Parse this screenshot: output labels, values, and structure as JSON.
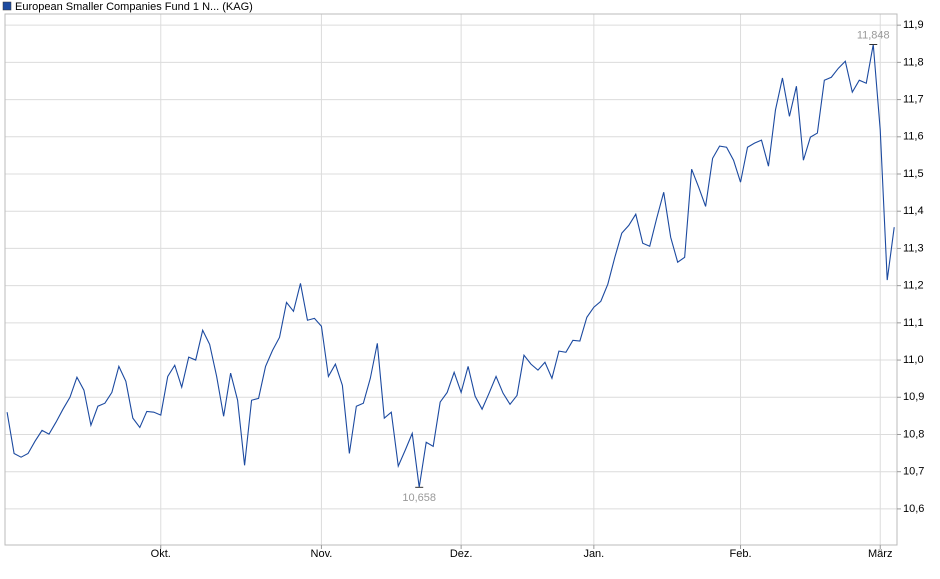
{
  "chart_data": {
    "type": "line",
    "series": [
      {
        "name": "European Smaller Companies Fund 1 N... (KAG)",
        "color": "#1c4aa0",
        "values": [
          10.86,
          10.749,
          10.739,
          10.749,
          10.782,
          10.811,
          10.801,
          10.833,
          10.868,
          10.9,
          10.954,
          10.919,
          10.825,
          10.876,
          10.884,
          10.913,
          10.983,
          10.943,
          10.844,
          10.819,
          10.862,
          10.86,
          10.852,
          10.956,
          10.986,
          10.927,
          11.008,
          11.0,
          11.08,
          11.042,
          10.956,
          10.849,
          10.965,
          10.892,
          10.717,
          10.892,
          10.897,
          10.983,
          11.026,
          11.061,
          11.155,
          11.131,
          11.206,
          11.107,
          11.112,
          11.091,
          10.956,
          10.989,
          10.932,
          10.749,
          10.876,
          10.884,
          10.951,
          11.045,
          10.844,
          10.86,
          10.715,
          10.758,
          10.803,
          10.658,
          10.779,
          10.768,
          10.887,
          10.913,
          10.967,
          10.913,
          10.983,
          10.903,
          10.868,
          10.911,
          10.956,
          10.911,
          10.881,
          10.905,
          11.013,
          10.989,
          10.973,
          10.994,
          10.951,
          11.024,
          11.021,
          11.053,
          11.051,
          11.115,
          11.142,
          11.158,
          11.204,
          11.276,
          11.341,
          11.362,
          11.392,
          11.314,
          11.306,
          11.381,
          11.451,
          11.33,
          11.263,
          11.276,
          11.513,
          11.465,
          11.413,
          11.542,
          11.575,
          11.572,
          11.537,
          11.478,
          11.572,
          11.583,
          11.591,
          11.521,
          11.672,
          11.758,
          11.655,
          11.736,
          11.537,
          11.599,
          11.61,
          11.752,
          11.76,
          11.784,
          11.803,
          11.72,
          11.752,
          11.744,
          11.848,
          11.618,
          11.215,
          11.357
        ]
      }
    ],
    "xlim": [
      -0.3,
      127.4
    ],
    "xticks": [
      {
        "value": 22,
        "label": "Okt."
      },
      {
        "value": 45,
        "label": "Nov."
      },
      {
        "value": 65,
        "label": "Dez."
      },
      {
        "value": 84,
        "label": "Jan."
      },
      {
        "value": 105,
        "label": "Feb."
      },
      {
        "value": 125,
        "label": "März"
      }
    ],
    "ylim": [
      10.503,
      11.93
    ],
    "yticks": [
      {
        "value": 10.6,
        "label": "10,6"
      },
      {
        "value": 10.7,
        "label": "10,7"
      },
      {
        "value": 10.8,
        "label": "10,8"
      },
      {
        "value": 10.9,
        "label": "10,9"
      },
      {
        "value": 11.0,
        "label": "11,0"
      },
      {
        "value": 11.1,
        "label": "11,1"
      },
      {
        "value": 11.2,
        "label": "11,2"
      },
      {
        "value": 11.3,
        "label": "11,3"
      },
      {
        "value": 11.4,
        "label": "11,4"
      },
      {
        "value": 11.5,
        "label": "11,5"
      },
      {
        "value": 11.6,
        "label": "11,6"
      },
      {
        "value": 11.7,
        "label": "11,7"
      },
      {
        "value": 11.8,
        "label": "11,8"
      },
      {
        "value": 11.9,
        "label": "11,9"
      }
    ],
    "annotations": [
      {
        "index": 59,
        "label": "10,658",
        "position": "below"
      },
      {
        "index": 124,
        "label": "11,848",
        "position": "above"
      }
    ],
    "grid": true
  }
}
